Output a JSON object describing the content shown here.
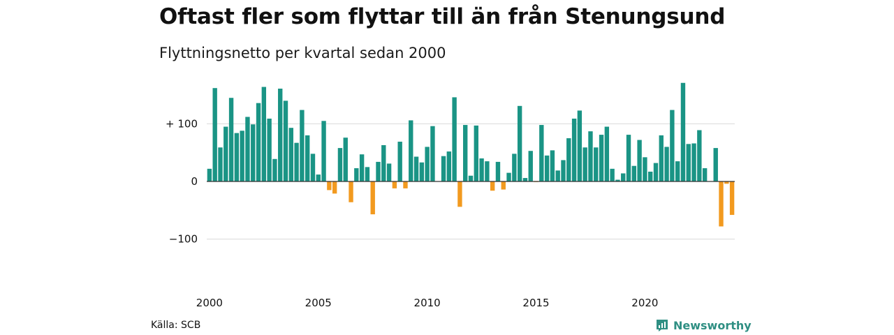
{
  "header": {
    "title": "Oftast fler som flyttar till än från Stenungsund",
    "subtitle": "Flyttningsnetto per kvartal sedan 2000"
  },
  "footer": {
    "source": "Källa: SCB",
    "brand": "Newsworthy",
    "brand_icon": "newsworthy-logo-icon"
  },
  "colors": {
    "positive": "#1a9485",
    "negative": "#f29a1f",
    "grid": "#d9d9d9",
    "axis": "#333333"
  },
  "chart_data": {
    "type": "bar",
    "title": "Oftast fler som flyttar till än från Stenungsund",
    "subtitle": "Flyttningsnetto per kvartal sedan 2000",
    "xlabel": "",
    "ylabel": "",
    "x_start": "2000 Q1",
    "x_tick_labels": [
      "2000",
      "2005",
      "2010",
      "2015",
      "2020"
    ],
    "y_tick_values": [
      100,
      0,
      -100
    ],
    "y_tick_labels": [
      "+ 100",
      "0",
      "−100"
    ],
    "ylim": [
      -140,
      175
    ],
    "grid": true,
    "legend": "none",
    "values": [
      22,
      162,
      59,
      95,
      145,
      84,
      88,
      112,
      99,
      136,
      164,
      109,
      39,
      161,
      140,
      93,
      67,
      124,
      80,
      48,
      12,
      105,
      -15,
      -21,
      58,
      76,
      -36,
      23,
      47,
      25,
      -57,
      34,
      63,
      31,
      -12,
      69,
      -12,
      106,
      43,
      33,
      60,
      96,
      0,
      44,
      52,
      146,
      -44,
      98,
      10,
      97,
      40,
      35,
      -16,
      34,
      -14,
      15,
      48,
      131,
      6,
      53,
      -1,
      98,
      45,
      54,
      19,
      37,
      75,
      109,
      123,
      59,
      87,
      59,
      81,
      95,
      22,
      3,
      14,
      81,
      27,
      72,
      42,
      17,
      32,
      80,
      60,
      124,
      35,
      171,
      65,
      66,
      89,
      23,
      0,
      58,
      -78,
      -4,
      -58
    ]
  }
}
